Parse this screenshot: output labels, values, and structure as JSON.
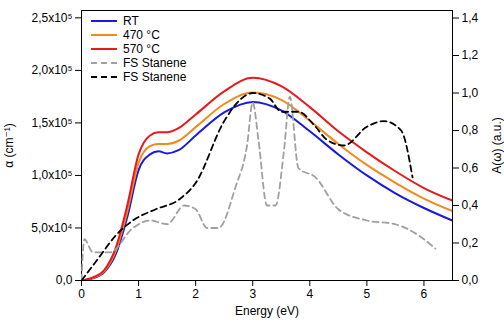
{
  "chart_data": {
    "type": "line",
    "x_label": "Energy (eV)",
    "y_label": "α (cm⁻¹)",
    "y2_label": "A(ω) (a.u.)",
    "xlim": [
      0,
      6.5
    ],
    "xticks": [
      0,
      1,
      2,
      3,
      4,
      5,
      6
    ],
    "ylim": [
      0,
      257000
    ],
    "yticks": [
      {
        "value": 0,
        "label": "0,0"
      },
      {
        "value": 50000,
        "label": "5,0x10⁴"
      },
      {
        "value": 100000,
        "label": "1,0x10⁵"
      },
      {
        "value": 150000,
        "label": "1,5x10⁵"
      },
      {
        "value": 200000,
        "label": "2,0x10⁵"
      },
      {
        "value": 250000,
        "label": "2,5x10⁵"
      }
    ],
    "y2lim": [
      0,
      1.44
    ],
    "y2ticks": [
      {
        "value": 0,
        "label": "0,0"
      },
      {
        "value": 0.2,
        "label": "0,2"
      },
      {
        "value": 0.4,
        "label": "0,4"
      },
      {
        "value": 0.6,
        "label": "0,6"
      },
      {
        "value": 0.8,
        "label": "0,8"
      },
      {
        "value": 1.0,
        "label": "1,0"
      },
      {
        "value": 1.2,
        "label": "1,2"
      },
      {
        "value": 1.4,
        "label": "1,4"
      }
    ],
    "grid": false,
    "legend": "upper left",
    "series": [
      {
        "name": "RT",
        "color": "#1a1adb",
        "line_style": "solid",
        "axis": "y",
        "x": [
          0,
          0.2,
          0.4,
          0.6,
          0.8,
          1.0,
          1.2,
          1.35,
          1.5,
          1.7,
          2.0,
          2.5,
          3.0,
          3.5,
          4.0,
          4.5,
          5.0,
          5.5,
          6.0,
          6.5
        ],
        "values": [
          0,
          2000,
          8000,
          25000,
          60000,
          105000,
          120000,
          123000,
          121000,
          124000,
          138000,
          160000,
          170000,
          162000,
          142000,
          120000,
          100000,
          83000,
          69000,
          57000
        ]
      },
      {
        "name": "470 °C",
        "color": "#f08a1c",
        "line_style": "solid",
        "axis": "y",
        "x": [
          0,
          0.2,
          0.4,
          0.6,
          0.8,
          1.0,
          1.2,
          1.35,
          1.5,
          1.7,
          2.0,
          2.5,
          3.0,
          3.5,
          4.0,
          4.5,
          5.0,
          5.5,
          6.0,
          6.5
        ],
        "values": [
          0,
          2500,
          9000,
          28000,
          65000,
          112000,
          128000,
          130000,
          130000,
          133000,
          146000,
          168000,
          179000,
          172000,
          152000,
          130000,
          110000,
          93000,
          78000,
          66000
        ]
      },
      {
        "name": "570 °C",
        "color": "#e8191c",
        "line_style": "solid",
        "axis": "y",
        "x": [
          0,
          0.2,
          0.4,
          0.6,
          0.8,
          1.0,
          1.2,
          1.35,
          1.5,
          1.7,
          2.0,
          2.5,
          3.0,
          3.5,
          4.0,
          4.5,
          5.0,
          5.5,
          6.0,
          6.5
        ],
        "values": [
          0,
          3000,
          10000,
          31000,
          71000,
          120000,
          138000,
          141000,
          141000,
          145000,
          158000,
          180000,
          193000,
          185000,
          165000,
          142000,
          122000,
          104000,
          88000,
          76000
        ]
      },
      {
        "name": "FS Stanene",
        "color": "#a0a0a0",
        "line_style": "dashed",
        "axis": "y2",
        "x": [
          0,
          0.05,
          0.2,
          0.5,
          0.9,
          1.2,
          1.5,
          1.8,
          2.0,
          2.2,
          2.4,
          2.7,
          2.9,
          3.0,
          3.1,
          3.25,
          3.4,
          3.55,
          3.65,
          3.8,
          4.1,
          4.5,
          5.0,
          5.5,
          6.0,
          6.2
        ],
        "values": [
          0,
          0.22,
          0.15,
          0.15,
          0.28,
          0.32,
          0.3,
          0.4,
          0.38,
          0.28,
          0.28,
          0.5,
          0.72,
          0.95,
          0.75,
          0.4,
          0.4,
          0.7,
          0.98,
          0.6,
          0.55,
          0.38,
          0.32,
          0.3,
          0.22,
          0.17
        ]
      },
      {
        "name": "FS Stanene",
        "color": "#000000",
        "line_style": "dashed",
        "axis": "y2",
        "x": [
          0,
          0.3,
          0.6,
          0.9,
          1.3,
          1.7,
          2.0,
          2.5,
          2.8,
          3.0,
          3.3,
          3.5,
          3.8,
          4.1,
          4.3,
          4.6,
          5.0,
          5.3,
          5.6,
          5.8
        ],
        "values": [
          0,
          0.12,
          0.24,
          0.32,
          0.38,
          0.43,
          0.52,
          0.85,
          0.97,
          1.0,
          0.97,
          0.9,
          0.9,
          0.82,
          0.75,
          0.72,
          0.82,
          0.85,
          0.8,
          0.55
        ]
      }
    ]
  }
}
